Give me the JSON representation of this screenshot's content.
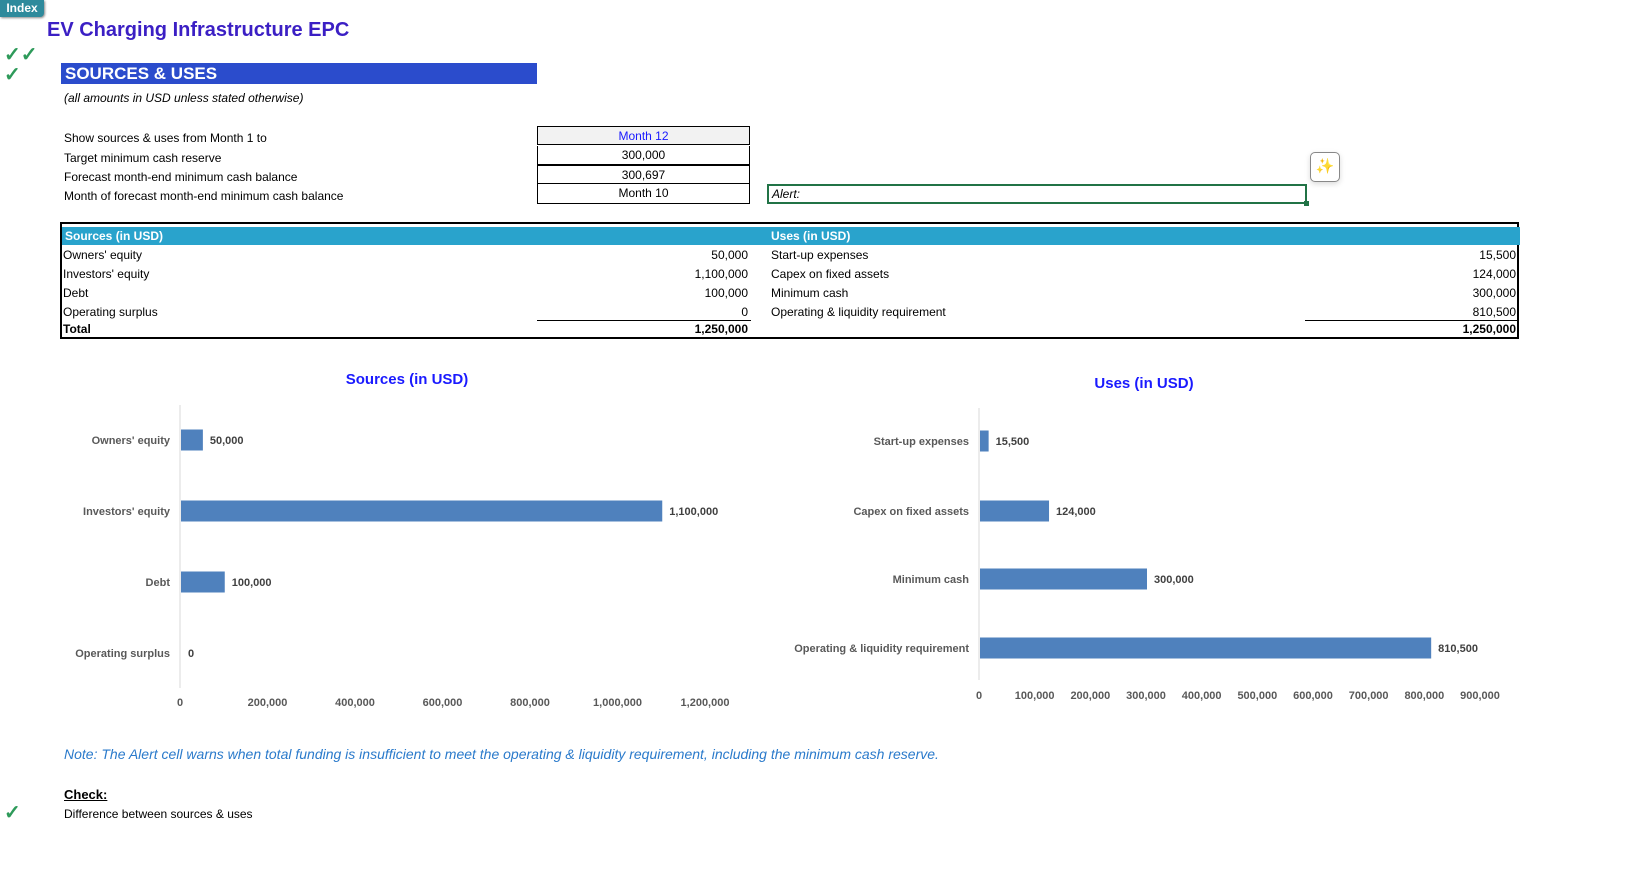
{
  "nav": {
    "index_label": "Index"
  },
  "header": {
    "title": "EV Charging Infrastructure EPC",
    "section": "SOURCES & USES",
    "subtitle": "(all amounts in USD unless stated otherwise)",
    "check_icons": [
      "double-checkmark-icon",
      "checkmark-icon"
    ]
  },
  "inputs": [
    {
      "label": "Show sources & uses from Month 1 to",
      "value": "Month 12"
    },
    {
      "label": "Target minimum cash reserve",
      "value": "300,000"
    },
    {
      "label": "Forecast month-end minimum cash balance",
      "value": "300,697"
    },
    {
      "label": "Month of forecast month-end minimum cash balance",
      "value": "Month 10"
    }
  ],
  "alert": {
    "label": "Alert:"
  },
  "table": {
    "sources_header": "Sources (in USD)",
    "uses_header": "Uses (in USD)",
    "sources": [
      {
        "label": "Owners' equity",
        "value": "50,000"
      },
      {
        "label": "Investors' equity",
        "value": "1,100,000"
      },
      {
        "label": "Debt",
        "value": "100,000"
      },
      {
        "label": "Operating surplus",
        "value": "0"
      }
    ],
    "uses": [
      {
        "label": "Start-up expenses",
        "value": "15,500"
      },
      {
        "label": "Capex on fixed assets",
        "value": "124,000"
      },
      {
        "label": "Minimum cash",
        "value": "300,000"
      },
      {
        "label": "Operating & liquidity requirement",
        "value": "810,500"
      }
    ],
    "total_label": "Total",
    "sources_total": "1,250,000",
    "uses_total": "1,250,000"
  },
  "chart_data": [
    {
      "type": "bar",
      "orientation": "horizontal",
      "title": "Sources (in USD)",
      "categories": [
        "Owners' equity",
        "Investors' equity",
        "Debt",
        "Operating surplus"
      ],
      "values": [
        50000,
        1100000,
        100000,
        0
      ],
      "data_labels": [
        "50,000",
        "1,100,000",
        "100,000",
        "0"
      ],
      "xlim": [
        0,
        1200000
      ],
      "ticks": [
        "0",
        "200,000",
        "400,000",
        "600,000",
        "800,000",
        "1,000,000",
        "1,200,000"
      ],
      "grid": false,
      "color": "#4f81bd"
    },
    {
      "type": "bar",
      "orientation": "horizontal",
      "title": "Uses (in USD)",
      "categories": [
        "Start-up expenses",
        "Capex on fixed assets",
        "Minimum cash",
        "Operating & liquidity requirement"
      ],
      "values": [
        15500,
        124000,
        300000,
        810500
      ],
      "data_labels": [
        "15,500",
        "124,000",
        "300,000",
        "810,500"
      ],
      "xlim": [
        0,
        900000
      ],
      "ticks": [
        "0",
        "100,000",
        "200,000",
        "300,000",
        "400,000",
        "500,000",
        "600,000",
        "700,000",
        "800,000",
        "900,000"
      ],
      "grid": false,
      "color": "#4f81bd"
    }
  ],
  "note": "Note: The Alert cell warns when total funding is insufficient to meet the operating & liquidity requirement, including the minimum cash reserve.",
  "check": {
    "heading": "Check:",
    "label": "Difference between sources & uses"
  }
}
